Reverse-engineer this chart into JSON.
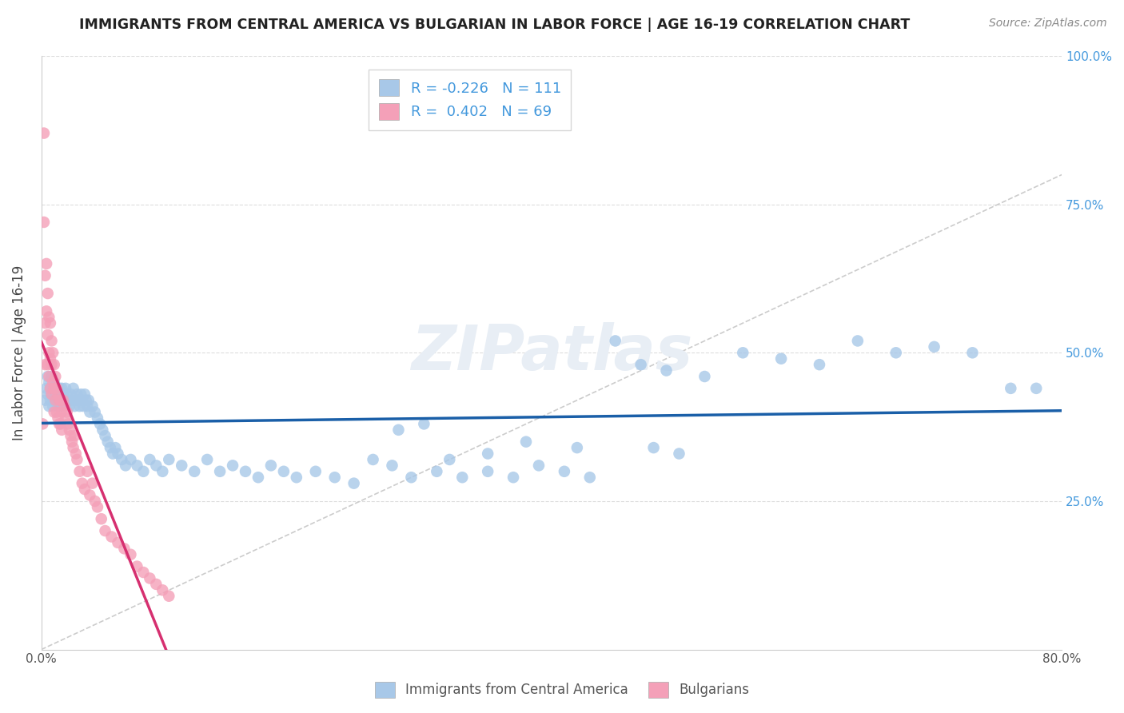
{
  "title": "IMMIGRANTS FROM CENTRAL AMERICA VS BULGARIAN IN LABOR FORCE | AGE 16-19 CORRELATION CHART",
  "source": "Source: ZipAtlas.com",
  "ylabel": "In Labor Force | Age 16-19",
  "blue_R": -0.226,
  "blue_N": 111,
  "pink_R": 0.402,
  "pink_N": 69,
  "blue_color": "#a8c8e8",
  "pink_color": "#f4a0b8",
  "blue_line_color": "#1a5fa8",
  "pink_line_color": "#d63070",
  "diag_line_color": "#cccccc",
  "legend_label_blue": "Immigrants from Central America",
  "legend_label_pink": "Bulgarians",
  "xlim": [
    0.0,
    0.8
  ],
  "ylim": [
    0.0,
    1.0
  ],
  "blue_scatter_x": [
    0.003,
    0.004,
    0.005,
    0.005,
    0.006,
    0.006,
    0.007,
    0.007,
    0.008,
    0.008,
    0.009,
    0.009,
    0.01,
    0.01,
    0.011,
    0.012,
    0.012,
    0.013,
    0.013,
    0.014,
    0.014,
    0.015,
    0.015,
    0.016,
    0.016,
    0.017,
    0.018,
    0.019,
    0.02,
    0.021,
    0.022,
    0.023,
    0.024,
    0.025,
    0.026,
    0.027,
    0.028,
    0.029,
    0.03,
    0.031,
    0.032,
    0.033,
    0.034,
    0.035,
    0.036,
    0.037,
    0.038,
    0.04,
    0.042,
    0.044,
    0.046,
    0.048,
    0.05,
    0.052,
    0.054,
    0.056,
    0.058,
    0.06,
    0.063,
    0.066,
    0.07,
    0.075,
    0.08,
    0.085,
    0.09,
    0.095,
    0.1,
    0.11,
    0.12,
    0.13,
    0.14,
    0.15,
    0.16,
    0.17,
    0.18,
    0.19,
    0.2,
    0.215,
    0.23,
    0.245,
    0.26,
    0.275,
    0.29,
    0.31,
    0.33,
    0.35,
    0.37,
    0.39,
    0.41,
    0.43,
    0.45,
    0.47,
    0.49,
    0.52,
    0.55,
    0.58,
    0.61,
    0.64,
    0.67,
    0.7,
    0.73,
    0.76,
    0.78,
    0.48,
    0.5,
    0.38,
    0.42,
    0.35,
    0.32,
    0.3,
    0.28
  ],
  "blue_scatter_y": [
    0.42,
    0.44,
    0.43,
    0.46,
    0.41,
    0.45,
    0.42,
    0.44,
    0.43,
    0.46,
    0.41,
    0.44,
    0.42,
    0.45,
    0.43,
    0.42,
    0.44,
    0.41,
    0.43,
    0.42,
    0.44,
    0.43,
    0.41,
    0.44,
    0.42,
    0.43,
    0.42,
    0.44,
    0.43,
    0.42,
    0.41,
    0.43,
    0.42,
    0.44,
    0.41,
    0.42,
    0.43,
    0.42,
    0.41,
    0.43,
    0.42,
    0.41,
    0.43,
    0.42,
    0.41,
    0.42,
    0.4,
    0.41,
    0.4,
    0.39,
    0.38,
    0.37,
    0.36,
    0.35,
    0.34,
    0.33,
    0.34,
    0.33,
    0.32,
    0.31,
    0.32,
    0.31,
    0.3,
    0.32,
    0.31,
    0.3,
    0.32,
    0.31,
    0.3,
    0.32,
    0.3,
    0.31,
    0.3,
    0.29,
    0.31,
    0.3,
    0.29,
    0.3,
    0.29,
    0.28,
    0.32,
    0.31,
    0.29,
    0.3,
    0.29,
    0.3,
    0.29,
    0.31,
    0.3,
    0.29,
    0.52,
    0.48,
    0.47,
    0.46,
    0.5,
    0.49,
    0.48,
    0.52,
    0.5,
    0.51,
    0.5,
    0.44,
    0.44,
    0.34,
    0.33,
    0.35,
    0.34,
    0.33,
    0.32,
    0.38,
    0.37
  ],
  "pink_scatter_x": [
    0.001,
    0.002,
    0.002,
    0.003,
    0.003,
    0.003,
    0.004,
    0.004,
    0.005,
    0.005,
    0.005,
    0.006,
    0.006,
    0.006,
    0.007,
    0.007,
    0.007,
    0.008,
    0.008,
    0.008,
    0.009,
    0.009,
    0.01,
    0.01,
    0.01,
    0.011,
    0.011,
    0.012,
    0.012,
    0.013,
    0.013,
    0.014,
    0.014,
    0.015,
    0.015,
    0.016,
    0.016,
    0.017,
    0.018,
    0.019,
    0.02,
    0.021,
    0.022,
    0.023,
    0.024,
    0.025,
    0.026,
    0.027,
    0.028,
    0.03,
    0.032,
    0.034,
    0.036,
    0.038,
    0.04,
    0.042,
    0.044,
    0.047,
    0.05,
    0.055,
    0.06,
    0.065,
    0.07,
    0.075,
    0.08,
    0.085,
    0.09,
    0.095,
    0.1
  ],
  "pink_scatter_y": [
    0.38,
    0.87,
    0.72,
    0.63,
    0.55,
    0.48,
    0.65,
    0.57,
    0.6,
    0.53,
    0.48,
    0.56,
    0.5,
    0.46,
    0.55,
    0.49,
    0.44,
    0.52,
    0.48,
    0.43,
    0.5,
    0.45,
    0.48,
    0.44,
    0.4,
    0.46,
    0.42,
    0.44,
    0.4,
    0.43,
    0.39,
    0.42,
    0.38,
    0.42,
    0.38,
    0.4,
    0.37,
    0.42,
    0.41,
    0.39,
    0.4,
    0.38,
    0.37,
    0.36,
    0.35,
    0.34,
    0.36,
    0.33,
    0.32,
    0.3,
    0.28,
    0.27,
    0.3,
    0.26,
    0.28,
    0.25,
    0.24,
    0.22,
    0.2,
    0.19,
    0.18,
    0.17,
    0.16,
    0.14,
    0.13,
    0.12,
    0.11,
    0.1,
    0.09
  ]
}
